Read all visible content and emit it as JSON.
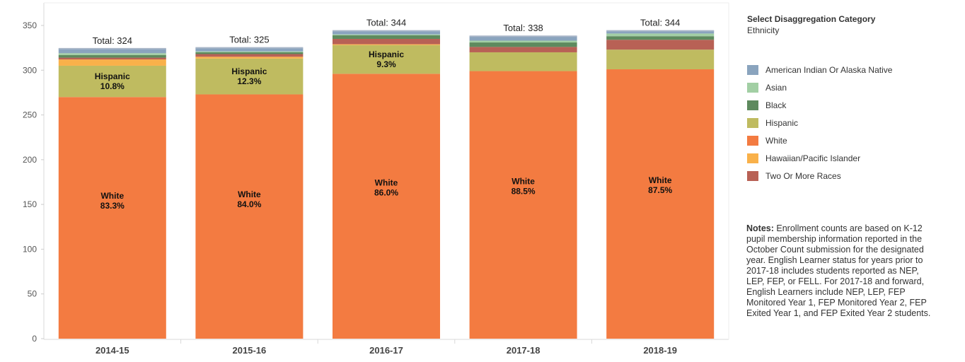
{
  "chart_data": {
    "type": "bar",
    "stacked": true,
    "categories": [
      "2014-15",
      "2015-16",
      "2016-17",
      "2017-18",
      "2018-19"
    ],
    "ylim": [
      0,
      360
    ],
    "yticks": [
      0,
      50,
      100,
      150,
      200,
      250,
      300,
      350
    ],
    "grid": false,
    "xlabel": "",
    "ylabel": "",
    "colors": {
      "American Indian Or Alaska Native": "#8aa4be",
      "Asian": "#a2cfa4",
      "Black": "#5e8a5e",
      "Hispanic": "#bfbb60",
      "White": "#f37b41",
      "Hawaiian/Pacific Islander": "#f9b14a",
      "Two Or More Races": "#b86155"
    },
    "stack_order": [
      "White",
      "Hispanic",
      "Hawaiian/Pacific Islander",
      "Two Or More Races",
      "Black",
      "Asian",
      "American Indian Or Alaska Native"
    ],
    "series": [
      {
        "name": "White",
        "values": [
          270,
          273,
          296,
          299,
          301
        ]
      },
      {
        "name": "Hispanic",
        "values": [
          35,
          40,
          32,
          21,
          22
        ]
      },
      {
        "name": "Hawaiian/Pacific Islander",
        "values": [
          7,
          2,
          1,
          0,
          0
        ]
      },
      {
        "name": "Two Or More Races",
        "values": [
          2,
          3,
          6,
          6,
          11
        ]
      },
      {
        "name": "Black",
        "values": [
          3,
          2,
          4,
          5,
          4
        ]
      },
      {
        "name": "Asian",
        "values": [
          2,
          1,
          1,
          2,
          3
        ]
      },
      {
        "name": "American Indian Or Alaska Native",
        "values": [
          5,
          4,
          4,
          5,
          3
        ]
      }
    ],
    "totals": [
      "Total: 324",
      "Total: 325",
      "Total: 344",
      "Total: 338",
      "Total: 344"
    ],
    "bar_labels": [
      [
        {
          "series": "Hispanic",
          "lines": [
            "Hispanic",
            "10.8%"
          ]
        },
        {
          "series": "White",
          "lines": [
            "White",
            "83.3%"
          ]
        }
      ],
      [
        {
          "series": "Hispanic",
          "lines": [
            "Hispanic",
            "12.3%"
          ]
        },
        {
          "series": "White",
          "lines": [
            "White",
            "84.0%"
          ]
        }
      ],
      [
        {
          "series": "Hispanic",
          "lines": [
            "Hispanic",
            "9.3%"
          ]
        },
        {
          "series": "White",
          "lines": [
            "White",
            "86.0%"
          ]
        }
      ],
      [
        {
          "series": "White",
          "lines": [
            "White",
            "88.5%"
          ]
        }
      ],
      [
        {
          "series": "White",
          "lines": [
            "White",
            "87.5%"
          ]
        }
      ]
    ]
  },
  "legend": {
    "title": "Select Disaggregation Category",
    "subtitle": "Ethnicity",
    "items": [
      {
        "label": "American Indian Or Alaska Native",
        "color": "#8aa4be"
      },
      {
        "label": "Asian",
        "color": "#a2cfa4"
      },
      {
        "label": "Black",
        "color": "#5e8a5e"
      },
      {
        "label": "Hispanic",
        "color": "#bfbb60"
      },
      {
        "label": "White",
        "color": "#f37b41"
      },
      {
        "label": "Hawaiian/Pacific Islander",
        "color": "#f9b14a"
      },
      {
        "label": "Two Or More Races",
        "color": "#b86155"
      }
    ]
  },
  "notes": {
    "label": "Notes:",
    "text": "Enrollment counts are based on K-12 pupil membership information reported in the October Count submission for the designated year. English Learner status for years prior to 2017-18 includes students reported as NEP, LEP, FEP, or FELL. For 2017-18 and forward, English Learners include NEP, LEP,  FEP Monitored Year 1, FEP Monitored Year 2, FEP Exited Year 1, and FEP Exited Year 2 students."
  }
}
